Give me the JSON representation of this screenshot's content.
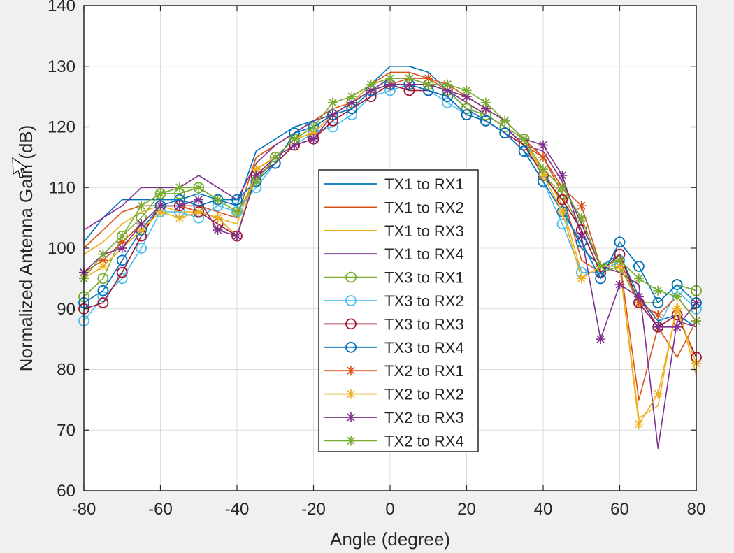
{
  "chart_data": {
    "type": "line",
    "xlabel": "Angle (degree)",
    "ylabel": "Normalized Antenna Gain (dB)",
    "xlim": [
      -80,
      80
    ],
    "ylim": [
      60,
      140
    ],
    "xticks": [
      -80,
      -60,
      -40,
      -20,
      0,
      20,
      40,
      60,
      80
    ],
    "yticks": [
      60,
      70,
      80,
      90,
      100,
      110,
      120,
      130,
      140
    ],
    "grid": true,
    "legend_position": "center-bottom",
    "x": [
      -80,
      -75,
      -70,
      -65,
      -60,
      -55,
      -50,
      -45,
      -40,
      -35,
      -30,
      -25,
      -20,
      -15,
      -10,
      -5,
      0,
      5,
      10,
      15,
      20,
      25,
      30,
      35,
      40,
      45,
      50,
      55,
      60,
      65,
      70,
      75,
      80
    ],
    "series": [
      {
        "name": "TX1 to RX1",
        "color": "#0072BD",
        "marker": "none",
        "values": [
          101,
          105,
          108,
          108,
          108,
          108,
          109,
          108,
          107,
          116,
          118,
          120,
          121,
          122,
          124,
          127,
          130,
          130,
          129,
          126,
          123,
          121,
          119,
          116,
          113,
          107,
          100,
          97,
          99,
          92,
          88,
          89,
          87
        ]
      },
      {
        "name": "TX1 to RX2",
        "color": "#D95319",
        "marker": "none",
        "values": [
          100,
          103,
          106,
          107,
          107,
          107,
          107,
          106,
          105,
          115,
          117,
          119,
          121,
          123,
          124,
          127,
          129,
          129,
          128,
          126,
          124,
          122,
          120,
          117,
          115,
          109,
          98,
          96,
          98,
          75,
          87,
          82,
          88
        ]
      },
      {
        "name": "TX1 to RX3",
        "color": "#EDB120",
        "marker": "none",
        "values": [
          99,
          101,
          104,
          106,
          107,
          106,
          106,
          105,
          104,
          113,
          115,
          118,
          120,
          122,
          124,
          127,
          128,
          128,
          127,
          126,
          124,
          122,
          120,
          117,
          113,
          107,
          96,
          96,
          97,
          72,
          74,
          91,
          79
        ]
      },
      {
        "name": "TX1 to RX4",
        "color": "#7E2F8E",
        "marker": "none",
        "values": [
          103,
          105,
          107,
          110,
          110,
          110,
          112,
          110,
          108,
          114,
          117,
          119,
          121,
          122,
          124,
          126,
          128,
          128,
          127,
          126,
          124,
          122,
          120,
          117,
          116,
          111,
          104,
          97,
          96,
          94,
          67,
          88,
          87
        ]
      },
      {
        "name": "TX3 to RX1",
        "color": "#77AC30",
        "marker": "circle",
        "values": [
          92,
          95,
          102,
          105,
          109,
          109,
          110,
          108,
          106,
          111,
          115,
          118,
          120,
          122,
          124,
          126,
          127,
          127,
          127,
          126,
          123,
          122,
          120,
          118,
          112,
          109,
          103,
          96,
          97,
          91,
          91,
          94,
          93
        ]
      },
      {
        "name": "TX3 to RX2",
        "color": "#4DBEEE",
        "marker": "circle",
        "values": [
          88,
          92,
          95,
          100,
          106,
          106,
          105,
          107,
          106,
          110,
          114,
          117,
          119,
          120,
          122,
          125,
          126,
          127,
          126,
          124,
          122,
          121,
          119,
          116,
          111,
          104,
          96,
          96,
          98,
          91,
          87,
          93,
          90
        ]
      },
      {
        "name": "TX3 to RX3",
        "color": "#A2142F",
        "marker": "circle",
        "values": [
          90,
          91,
          96,
          102,
          107,
          107,
          106,
          104,
          102,
          112,
          114,
          117,
          118,
          121,
          123,
          125,
          127,
          126,
          126,
          125,
          122,
          121,
          119,
          117,
          112,
          108,
          103,
          96,
          99,
          91,
          87,
          89,
          82
        ]
      },
      {
        "name": "TX3 to RX4",
        "color": "#0072BD",
        "marker": "circle",
        "values": [
          91,
          93,
          98,
          103,
          107,
          108,
          107,
          108,
          108,
          111,
          114,
          119,
          120,
          122,
          123,
          126,
          127,
          127,
          126,
          125,
          122,
          121,
          119,
          116,
          111,
          106,
          101,
          95,
          101,
          97,
          91,
          94,
          91
        ]
      },
      {
        "name": "TX2 to RX1",
        "color": "#D95319",
        "marker": "star",
        "values": [
          96,
          98,
          101,
          104,
          107,
          107,
          106,
          105,
          102,
          113,
          115,
          118,
          119,
          122,
          124,
          126,
          127,
          128,
          128,
          127,
          125,
          123,
          121,
          118,
          115,
          110,
          107,
          97,
          98,
          91,
          89,
          92,
          88
        ]
      },
      {
        "name": "TX2 to RX2",
        "color": "#EDB120",
        "marker": "star",
        "values": [
          95,
          97,
          100,
          103,
          106,
          105,
          106,
          105,
          102,
          113,
          115,
          118,
          119,
          122,
          124,
          126,
          127,
          127,
          127,
          126,
          125,
          123,
          121,
          118,
          112,
          106,
          95,
          97,
          97,
          71,
          76,
          90,
          81
        ]
      },
      {
        "name": "TX2 to RX3",
        "color": "#7E2F8E",
        "marker": "star",
        "values": [
          96,
          99,
          100,
          104,
          107,
          107,
          108,
          103,
          102,
          112,
          115,
          117,
          118,
          122,
          124,
          126,
          127,
          127,
          127,
          126,
          125,
          123,
          121,
          118,
          117,
          112,
          102,
          85,
          94,
          92,
          87,
          87,
          91
        ]
      },
      {
        "name": "TX2 to RX4",
        "color": "#77AC30",
        "marker": "star",
        "values": [
          95,
          99,
          102,
          107,
          109,
          110,
          110,
          108,
          106,
          111,
          115,
          118,
          120,
          124,
          125,
          127,
          128,
          128,
          127,
          127,
          126,
          124,
          121,
          118,
          113,
          110,
          105,
          97,
          98,
          95,
          93,
          92,
          88
        ]
      }
    ]
  }
}
